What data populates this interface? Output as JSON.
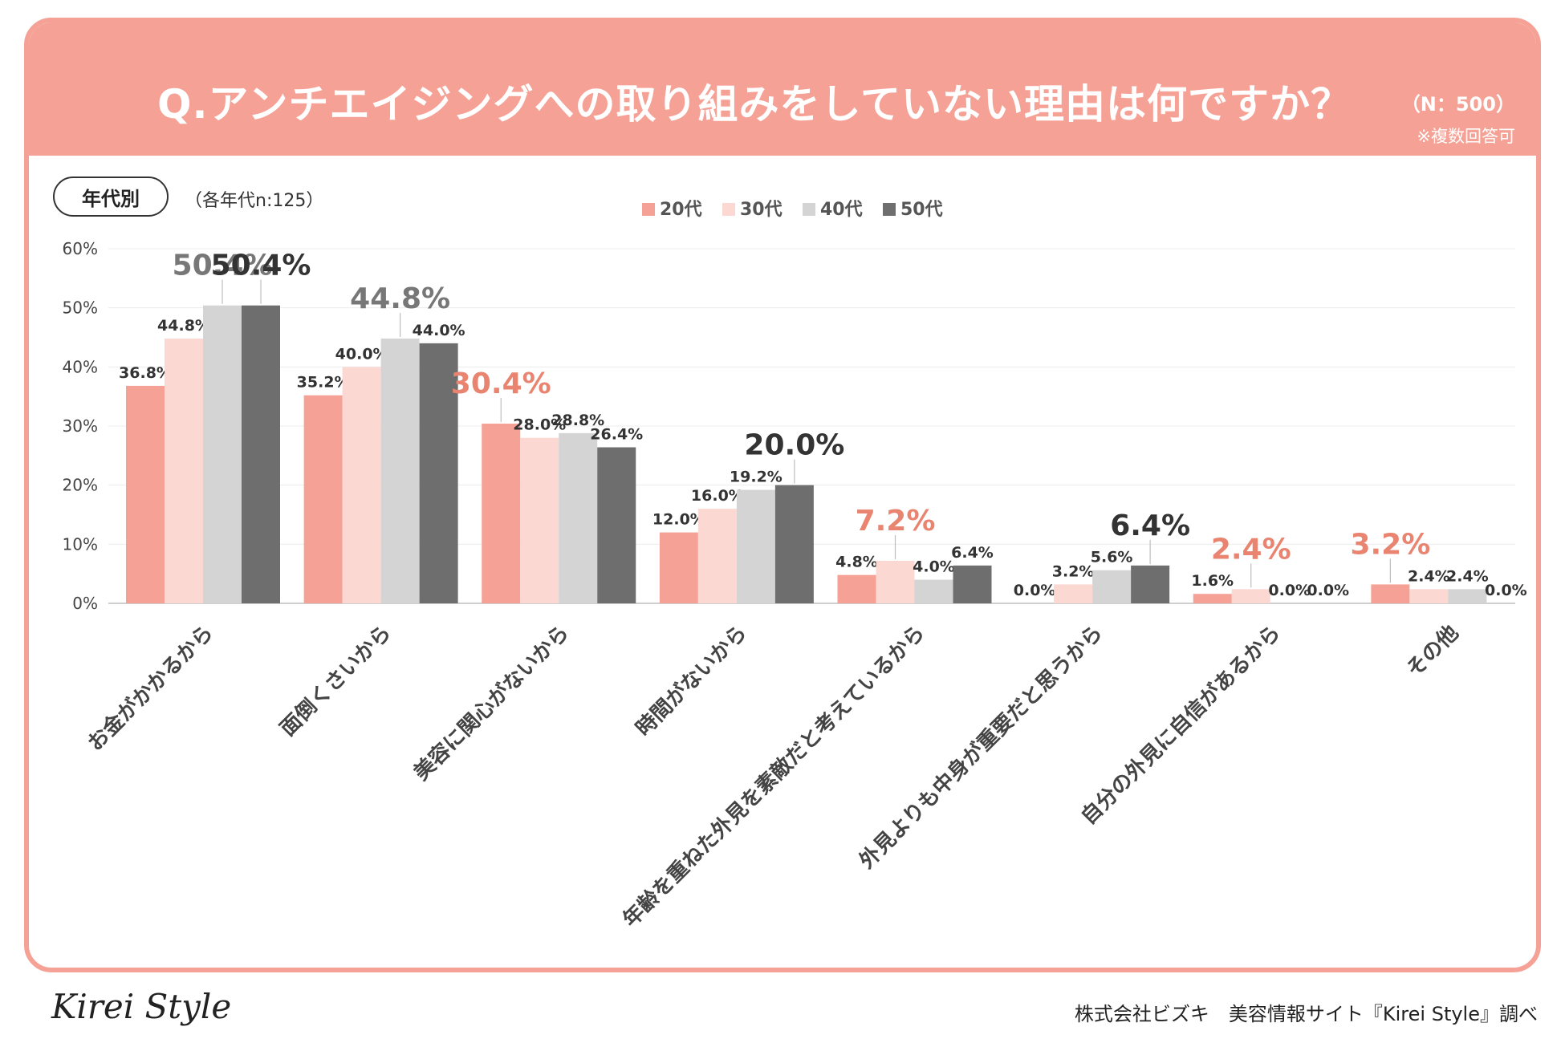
{
  "header": {
    "title": "Q.アンチエイジングへの取り組みをしていない理由は何ですか？",
    "sample": "（N：500）",
    "note": "※複数回答可"
  },
  "segment": {
    "badge": "年代別",
    "note": "（各年代n:125）"
  },
  "colors": {
    "header_bg": "#f5a195",
    "highlight_label": "#e88470",
    "gray_label": "#777777",
    "dark_label": "#333333"
  },
  "chart_data": {
    "type": "bar",
    "title": "Q.アンチエイジングへの取り組みをしていない理由は何ですか？",
    "xlabel": "",
    "ylabel": "",
    "ylim": [
      0,
      60
    ],
    "yticks": [
      "0%",
      "10%",
      "20%",
      "30%",
      "40%",
      "50%",
      "60%"
    ],
    "grid": true,
    "legend_position": "top-center",
    "categories": [
      "お金がかかるから",
      "面倒くさいから",
      "美容に関心がないから",
      "時間がないから",
      "年齢を重ねた外見を素敵だと考えているから",
      "外見よりも中身が重要だと思うから",
      "自分の外見に自信があるから",
      "その他"
    ],
    "series": [
      {
        "name": "20代",
        "color": "#f5a195",
        "values": [
          36.8,
          35.2,
          30.4,
          12.0,
          4.8,
          0.0,
          1.6,
          3.2
        ]
      },
      {
        "name": "30代",
        "color": "#fcd8d3",
        "values": [
          44.8,
          40.0,
          28.0,
          16.0,
          7.2,
          3.2,
          2.4,
          2.4
        ]
      },
      {
        "name": "40代",
        "color": "#d4d4d4",
        "values": [
          50.4,
          44.8,
          28.8,
          19.2,
          4.0,
          5.6,
          0.0,
          2.4
        ]
      },
      {
        "name": "50代",
        "color": "#6e6e6e",
        "values": [
          50.4,
          44.0,
          26.4,
          20.0,
          6.4,
          6.4,
          0.0,
          0.0
        ]
      }
    ],
    "data_labels": [
      [
        "36.8%",
        "44.8%",
        "50.4%",
        "50.4%"
      ],
      [
        "35.2%",
        "40.0%",
        "44.8%",
        "44.0%"
      ],
      [
        "30.4%",
        "28.0%",
        "28.8%",
        "26.4%"
      ],
      [
        "12.0%",
        "16.0%",
        "19.2%",
        "20.0%"
      ],
      [
        "4.8%",
        "7.2%",
        "4.0%",
        "6.4%"
      ],
      [
        "0.0%",
        "3.2%",
        "5.6%",
        "6.4%"
      ],
      [
        "1.6%",
        "2.4%",
        "0.0%",
        "0.0%"
      ],
      [
        "3.2%",
        "2.4%",
        "2.4%",
        "0.0%"
      ]
    ],
    "highlights": [
      {
        "category": 0,
        "series": 2,
        "style": "gray"
      },
      {
        "category": 0,
        "series": 3,
        "style": "dark"
      },
      {
        "category": 1,
        "series": 2,
        "style": "gray"
      },
      {
        "category": 2,
        "series": 0,
        "style": "salmon"
      },
      {
        "category": 3,
        "series": 3,
        "style": "dark"
      },
      {
        "category": 4,
        "series": 1,
        "style": "salmon"
      },
      {
        "category": 5,
        "series": 3,
        "style": "dark"
      },
      {
        "category": 6,
        "series": 1,
        "style": "salmon"
      },
      {
        "category": 7,
        "series": 0,
        "style": "salmon"
      }
    ]
  },
  "footer": {
    "logo": "Kirei Style",
    "credit": "株式会社ビズキ　美容情報サイト『Kirei Style』調べ"
  }
}
